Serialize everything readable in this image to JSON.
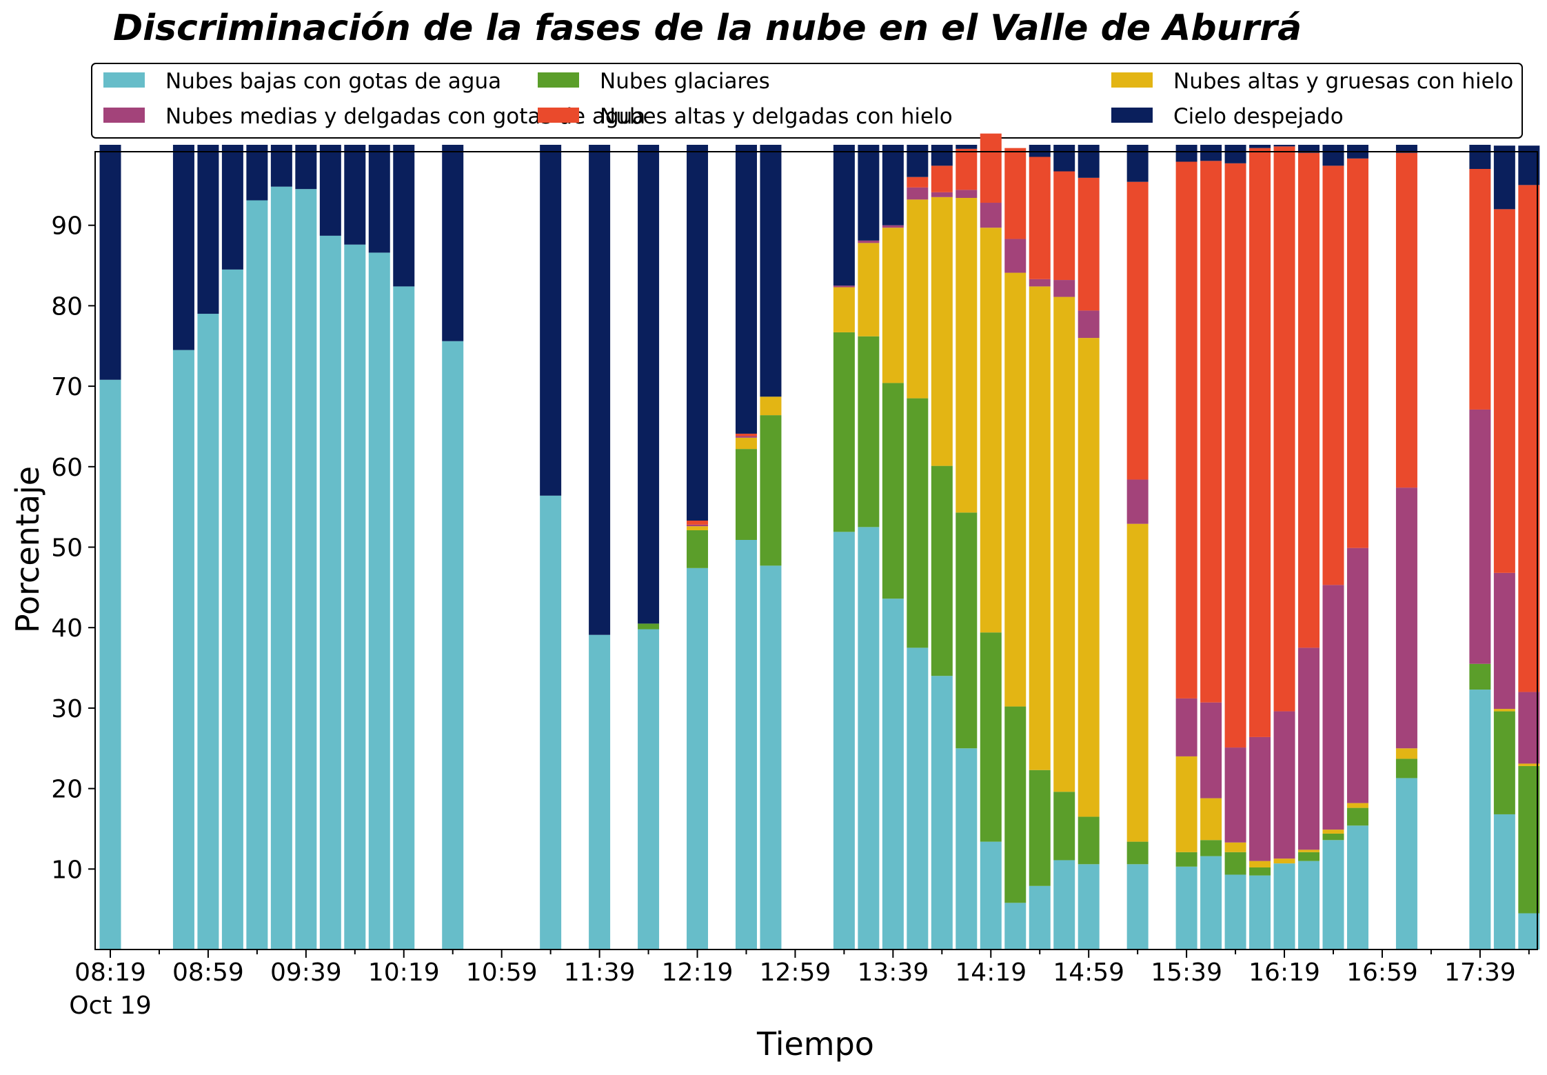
{
  "chart_data": {
    "type": "bar",
    "stacked": true,
    "title": "Discriminación de la fases de la nube en el Valle de Aburrá",
    "xlabel": "Tiempo",
    "ylabel": "Porcentaje",
    "ylim": [
      0,
      100
    ],
    "yticks": [
      10,
      20,
      30,
      40,
      50,
      60,
      70,
      80,
      90
    ],
    "x_tick_labels": [
      "08:19",
      "08:59",
      "09:39",
      "10:19",
      "10:59",
      "11:39",
      "12:19",
      "12:59",
      "13:39",
      "14:19",
      "14:59",
      "15:39",
      "16:19",
      "16:59",
      "17:39"
    ],
    "x_date_label": "Oct 19",
    "grid": false,
    "legend_position": "top",
    "interval_minutes": 10,
    "categories": [
      "08:19",
      "08:29",
      "08:39",
      "08:49",
      "08:59",
      "09:09",
      "09:19",
      "09:29",
      "09:39",
      "09:49",
      "09:59",
      "10:09",
      "10:19",
      "10:29",
      "10:39",
      "10:49",
      "10:59",
      "11:09",
      "11:19",
      "11:29",
      "11:39",
      "11:49",
      "11:59",
      "12:09",
      "12:19",
      "12:29",
      "12:39",
      "12:49",
      "12:59",
      "13:09",
      "13:19",
      "13:29",
      "13:39",
      "13:49",
      "13:59",
      "14:09",
      "14:19",
      "14:29",
      "14:39",
      "14:49",
      "14:59",
      "15:09",
      "15:19",
      "15:29",
      "15:39",
      "15:49",
      "15:59",
      "16:09",
      "16:19",
      "16:29",
      "16:39",
      "16:49",
      "16:59",
      "17:09",
      "17:19",
      "17:29",
      "17:39",
      "17:49",
      "17:59"
    ],
    "series": [
      {
        "name": "Nubes bajas con gotas de agua",
        "color": "#67BDC9",
        "values": [
          70.8,
          0,
          0,
          74.5,
          79.0,
          84.5,
          93.1,
          94.8,
          94.5,
          88.7,
          87.6,
          86.6,
          82.4,
          0,
          75.6,
          0,
          0,
          0,
          56.4,
          0,
          39.1,
          0,
          39.8,
          0,
          47.4,
          0,
          50.9,
          47.7,
          0,
          0,
          51.9,
          52.5,
          43.6,
          37.5,
          34.0,
          25.0,
          13.4,
          5.8,
          7.9,
          11.1,
          10.6,
          0,
          10.6,
          0,
          10.3,
          11.6,
          9.3,
          9.2,
          10.7,
          11.0,
          13.6,
          15.4,
          0,
          21.3,
          0,
          0,
          32.3,
          16.8,
          4.5
        ]
      },
      {
        "name": "Nubes glaciares",
        "color": "#5B9E2A",
        "values": [
          0,
          0,
          0,
          0,
          0,
          0,
          0,
          0,
          0,
          0,
          0,
          0,
          0,
          0,
          0,
          0,
          0,
          0,
          0,
          0,
          0,
          0,
          0.7,
          0,
          4.7,
          0,
          11.3,
          18.7,
          0,
          0,
          24.8,
          23.7,
          26.8,
          31.0,
          26.1,
          29.3,
          26.0,
          24.4,
          14.4,
          8.5,
          5.9,
          0,
          2.8,
          0,
          1.8,
          2.0,
          2.8,
          1.0,
          0,
          1.1,
          0.8,
          2.2,
          0,
          2.4,
          0,
          0,
          3.2,
          12.8,
          18.3
        ]
      },
      {
        "name": "Nubes altas y gruesas con hielo",
        "color": "#E3B514",
        "values": [
          0,
          0,
          0,
          0,
          0,
          0,
          0,
          0,
          0,
          0,
          0,
          0,
          0,
          0,
          0,
          0,
          0,
          0,
          0,
          0,
          0,
          0,
          0,
          0,
          0.5,
          0,
          1.4,
          2.3,
          0,
          0,
          5.6,
          11.6,
          19.3,
          24.7,
          33.4,
          39.1,
          50.3,
          53.9,
          60.1,
          61.5,
          59.5,
          0,
          39.5,
          0,
          11.9,
          5.2,
          1.2,
          0.8,
          0.6,
          0.3,
          0.5,
          0.6,
          0,
          1.3,
          0,
          0,
          0,
          0.3,
          0.3
        ]
      },
      {
        "name": "Nubes medias y delgadas con gotas de agua",
        "color": "#A3437A",
        "values": [
          0,
          0,
          0,
          0,
          0,
          0,
          0,
          0,
          0,
          0,
          0,
          0,
          0,
          0,
          0,
          0,
          0,
          0,
          0,
          0,
          0,
          0,
          0,
          0,
          0.2,
          0,
          0.2,
          0,
          0,
          0,
          0.2,
          0.3,
          0.3,
          1.5,
          0.6,
          1.0,
          3.1,
          4.2,
          0.9,
          2.1,
          3.4,
          0,
          5.5,
          0,
          7.2,
          11.9,
          11.8,
          15.4,
          18.3,
          25.1,
          30.4,
          31.7,
          0,
          32.4,
          0,
          0,
          31.6,
          16.9,
          8.9
        ]
      },
      {
        "name": "Nubes altas y delgadas con hielo",
        "color": "#EA4A2C",
        "values": [
          0,
          0,
          0,
          0,
          0,
          0,
          0,
          0,
          0,
          0,
          0,
          0,
          0,
          0,
          0,
          0,
          0,
          0,
          0,
          0,
          0,
          0,
          0,
          0,
          0.5,
          0,
          0.3,
          0,
          0,
          0,
          0,
          0,
          0,
          1.3,
          3.3,
          5.1,
          8.6,
          11.3,
          15.2,
          13.5,
          16.5,
          0,
          37.0,
          0,
          66.7,
          67.3,
          72.6,
          73.2,
          70.2,
          61.5,
          52.1,
          48.4,
          0,
          41.6,
          0,
          0,
          29.9,
          45.2,
          63.0
        ]
      },
      {
        "name": "Cielo despejado",
        "color": "#0A1F5C",
        "values": [
          29.2,
          0,
          0,
          25.5,
          21.0,
          15.5,
          6.9,
          5.2,
          5.5,
          11.3,
          12.4,
          13.4,
          17.6,
          0,
          24.4,
          0,
          0,
          0,
          43.6,
          0,
          60.9,
          0,
          59.5,
          0,
          46.7,
          0,
          35.9,
          31.3,
          0,
          0,
          17.5,
          11.9,
          10.0,
          4.0,
          2.6,
          0.5,
          0,
          0,
          1.5,
          3.3,
          4.1,
          0,
          4.6,
          0,
          2.1,
          2.0,
          2.3,
          0.4,
          0.2,
          1.0,
          2.6,
          1.7,
          0,
          1.0,
          0,
          0,
          3.0,
          7.9,
          4.9
        ]
      }
    ]
  },
  "colors": {
    "background": "#ffffff",
    "axis": "#000000"
  }
}
